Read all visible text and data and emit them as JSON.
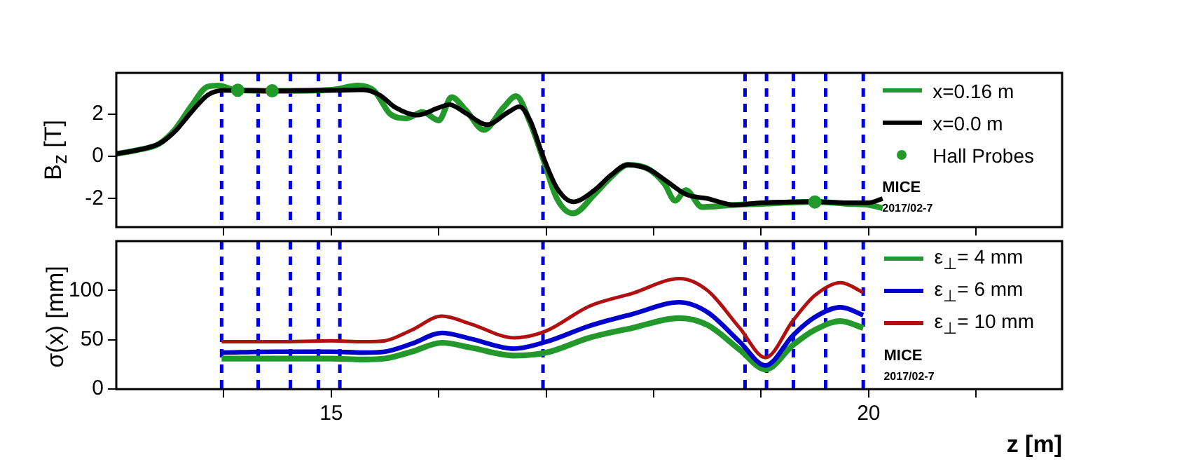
{
  "chart_data": [
    {
      "type": "line",
      "ylabel": "B$_{z}$ [T]",
      "xlim": [
        13,
        21.8
      ],
      "xticks": [
        {
          "value": 14,
          "label": null
        },
        {
          "value": 15,
          "label": null
        },
        {
          "value": 16,
          "label": null
        },
        {
          "value": 17,
          "label": null
        },
        {
          "value": 18,
          "label": null
        },
        {
          "value": 19,
          "label": null
        },
        {
          "value": 20,
          "label": null
        },
        {
          "value": 21,
          "label": null
        }
      ],
      "ylim": [
        -3.35,
        3.95
      ],
      "yticks": [
        -2,
        0,
        2
      ],
      "tick_labels": "y",
      "grid": false,
      "legend": "top right",
      "marker": "none",
      "line_style": "solid",
      "series": [
        {
          "name": "x=0.16 m",
          "color": "#22992a",
          "x": [
            13.0,
            13.2,
            13.4,
            13.55,
            13.7,
            13.85,
            13.95,
            14.1,
            14.5,
            15.0,
            15.25,
            15.4,
            15.55,
            15.7,
            15.85,
            16.0,
            16.12,
            16.25,
            16.42,
            16.6,
            16.72,
            16.85,
            16.97,
            17.1,
            17.25,
            17.45,
            17.6,
            17.76,
            17.95,
            18.1,
            18.2,
            18.3,
            18.45,
            18.75,
            19.0,
            19.5,
            19.8,
            20.0,
            20.13
          ],
          "values": [
            0.12,
            0.3,
            0.6,
            1.3,
            2.4,
            3.3,
            3.35,
            3.15,
            3.1,
            3.15,
            3.35,
            3.1,
            2.0,
            1.8,
            2.1,
            1.7,
            2.8,
            2.2,
            1.25,
            2.3,
            2.85,
            1.6,
            -0.1,
            -2.0,
            -2.7,
            -1.8,
            -1.0,
            -0.4,
            -0.6,
            -1.3,
            -2.1,
            -1.6,
            -2.4,
            -2.3,
            -2.25,
            -2.15,
            -2.25,
            -2.3,
            -2.45
          ]
        },
        {
          "name": "x=0.0 m",
          "color": "#000000",
          "x": [
            13.0,
            13.2,
            13.4,
            13.55,
            13.7,
            13.85,
            14.0,
            14.5,
            15.0,
            15.3,
            15.45,
            15.6,
            15.8,
            16.0,
            16.1,
            16.25,
            16.45,
            16.65,
            16.75,
            16.85,
            16.97,
            17.1,
            17.25,
            17.45,
            17.6,
            17.76,
            17.95,
            18.1,
            18.3,
            18.5,
            18.75,
            19.0,
            19.5,
            19.8,
            20.0,
            20.13
          ],
          "values": [
            0.12,
            0.3,
            0.6,
            1.2,
            2.1,
            2.9,
            3.12,
            3.1,
            3.12,
            3.15,
            2.9,
            2.3,
            1.95,
            2.3,
            2.45,
            2.05,
            1.5,
            2.1,
            2.35,
            1.7,
            0,
            -1.5,
            -2.15,
            -1.6,
            -0.9,
            -0.4,
            -0.6,
            -1.1,
            -1.8,
            -2.0,
            -2.3,
            -2.2,
            -2.15,
            -2.2,
            -2.2,
            -2.0
          ]
        },
        {
          "name": "Hall Probes",
          "type": "scatter",
          "marker": "circle",
          "color": "#22992a",
          "x": [
            14.13,
            14.45,
            19.5
          ],
          "values": [
            3.13,
            3.1,
            -2.16
          ]
        }
      ],
      "ref_lines": [
        {
          "axis": "x",
          "value": 13.98,
          "color": "#0000dd",
          "line_style": "dashed"
        },
        {
          "axis": "x",
          "value": 14.32,
          "color": "#0000dd",
          "line_style": "dashed"
        },
        {
          "axis": "x",
          "value": 14.62,
          "color": "#0000dd",
          "line_style": "dashed"
        },
        {
          "axis": "x",
          "value": 14.88,
          "color": "#0000dd",
          "line_style": "dashed"
        },
        {
          "axis": "x",
          "value": 15.08,
          "color": "#0000dd",
          "line_style": "dashed"
        },
        {
          "axis": "x",
          "value": 16.97,
          "color": "#0000dd",
          "line_style": "dashed"
        },
        {
          "axis": "x",
          "value": 18.85,
          "color": "#0000dd",
          "line_style": "dashed"
        },
        {
          "axis": "x",
          "value": 19.05,
          "color": "#0000dd",
          "line_style": "dashed"
        },
        {
          "axis": "x",
          "value": 19.3,
          "color": "#0000dd",
          "line_style": "dashed"
        },
        {
          "axis": "x",
          "value": 19.6,
          "color": "#0000dd",
          "line_style": "dashed"
        },
        {
          "axis": "x",
          "value": 19.95,
          "color": "#0000dd",
          "line_style": "dashed"
        }
      ],
      "annotations": [
        "MICE",
        "2017/02-7"
      ]
    },
    {
      "type": "line",
      "ylabel": "σ(x) [mm]",
      "xlabel": "z [m]",
      "xlim": [
        13,
        21.8
      ],
      "xticks": [
        {
          "value": 14,
          "label": null
        },
        15,
        {
          "value": 16,
          "label": null
        },
        {
          "value": 17,
          "label": null
        },
        {
          "value": 18,
          "label": null
        },
        {
          "value": 19,
          "label": null
        },
        20,
        {
          "value": 21,
          "label": null
        }
      ],
      "ylim": [
        0,
        150
      ],
      "yticks": [
        0,
        50,
        100
      ],
      "grid": false,
      "legend": "top right",
      "marker": "none",
      "line_style": "solid",
      "series": [
        {
          "name": "ε$_{⊥}$= 4 mm",
          "color": "#22992a",
          "x": [
            13.98,
            14.5,
            15.0,
            15.3,
            15.5,
            15.75,
            16.03,
            16.3,
            16.7,
            17.0,
            17.4,
            17.8,
            18.24,
            18.5,
            18.8,
            19.04,
            19.3,
            19.5,
            19.74,
            19.95
          ],
          "values": [
            31,
            31,
            31,
            30,
            31,
            38,
            47,
            42,
            34,
            37,
            52,
            62,
            72,
            65,
            40,
            20,
            45,
            60,
            69,
            62
          ]
        },
        {
          "name": "ε$_{⊥}$= 6 mm",
          "color": "#0000cc",
          "x": [
            13.98,
            14.5,
            15.0,
            15.3,
            15.5,
            15.75,
            16.03,
            16.3,
            16.7,
            17.0,
            17.4,
            17.8,
            18.24,
            18.5,
            18.8,
            19.04,
            19.3,
            19.5,
            19.74,
            19.95
          ],
          "values": [
            37,
            38,
            38,
            37,
            38,
            46,
            57,
            51,
            41,
            48,
            64,
            76,
            88,
            78,
            48,
            24,
            55,
            73,
            83,
            75
          ]
        },
        {
          "name": "ε$_{⊥}$= 10 mm",
          "color": "#b01010",
          "x": [
            13.98,
            14.5,
            15.0,
            15.3,
            15.5,
            15.75,
            16.03,
            16.3,
            16.7,
            17.0,
            17.4,
            17.8,
            18.24,
            18.5,
            18.8,
            19.04,
            19.3,
            19.5,
            19.74,
            19.95
          ],
          "values": [
            48,
            48,
            49,
            48,
            49,
            60,
            74,
            66,
            52,
            59,
            84,
            97,
            112,
            100,
            62,
            32,
            70,
            95,
            108,
            98
          ]
        }
      ],
      "ref_lines": [
        {
          "axis": "x",
          "value": 13.98,
          "color": "#0000dd",
          "line_style": "dashed"
        },
        {
          "axis": "x",
          "value": 14.32,
          "color": "#0000dd",
          "line_style": "dashed"
        },
        {
          "axis": "x",
          "value": 14.62,
          "color": "#0000dd",
          "line_style": "dashed"
        },
        {
          "axis": "x",
          "value": 14.88,
          "color": "#0000dd",
          "line_style": "dashed"
        },
        {
          "axis": "x",
          "value": 15.08,
          "color": "#0000dd",
          "line_style": "dashed"
        },
        {
          "axis": "x",
          "value": 16.97,
          "color": "#0000dd",
          "line_style": "dashed"
        },
        {
          "axis": "x",
          "value": 18.85,
          "color": "#0000dd",
          "line_style": "dashed"
        },
        {
          "axis": "x",
          "value": 19.05,
          "color": "#0000dd",
          "line_style": "dashed"
        },
        {
          "axis": "x",
          "value": 19.3,
          "color": "#0000dd",
          "line_style": "dashed"
        },
        {
          "axis": "x",
          "value": 19.6,
          "color": "#0000dd",
          "line_style": "dashed"
        },
        {
          "axis": "x",
          "value": 19.95,
          "color": "#0000dd",
          "line_style": "dashed"
        }
      ],
      "annotations": [
        "MICE",
        "2017/02-7"
      ]
    }
  ]
}
